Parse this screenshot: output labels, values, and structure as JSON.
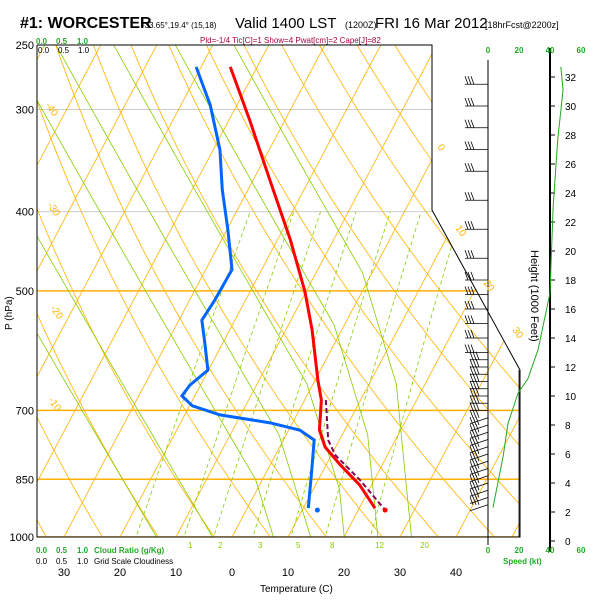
{
  "header": {
    "station": "#1: WORCESTER",
    "coords": "-33.65°,19.4° (15,18)",
    "valid": "Valid 1400 LST",
    "utc": "(1200Z)",
    "date": "FRI 16 Mar 2012",
    "forecast": "[18hrFcst@2200z]",
    "indices": "Pld=-1/4 Tic[C]=1 Show=4 Pwat[cm]=2 Cape[J]=82"
  },
  "cloud": {
    "ratio_ticks": [
      "0.0",
      "0.5",
      "1.0"
    ],
    "ratio_label": "Cloud Ratio (g/Kg)",
    "grid_ticks": [
      "0.0",
      "0.5",
      "1.0"
    ],
    "grid_label": "Grid Scale Cloudiness"
  },
  "colors": {
    "temp": "#ff0000",
    "dew": "#0066ff",
    "parcel": "#880055",
    "isotherm": "#ffb300",
    "mixing": "#88cc00",
    "wind": "#22aa22"
  },
  "chart_data": {
    "type": "line",
    "title": "Skew-T sounding",
    "xlabel": "Temperature (C)",
    "ylabel": "P (hPa)",
    "y2label": "Height (1000 Feet)",
    "pressure_ticks": [
      250,
      300,
      400,
      500,
      700,
      850,
      1000
    ],
    "temp_ticks": [
      -30,
      -20,
      -10,
      0,
      10,
      20,
      30,
      40
    ],
    "temp_tick_labels": [
      "30",
      "20",
      "10",
      "0",
      "10",
      "20",
      "30",
      "40"
    ],
    "height_ticks": [
      0,
      2,
      4,
      6,
      8,
      10,
      12,
      14,
      16,
      18,
      20,
      22,
      24,
      26,
      28,
      30,
      32
    ],
    "isotherm_labels": [
      "-40",
      "-30",
      "-20",
      "-10",
      "0",
      "10",
      "20",
      "30"
    ],
    "mixing_ratio_labels": [
      "1",
      "2",
      "3",
      "5",
      "8",
      "12",
      "20"
    ],
    "speed_ticks": [
      "0",
      "20",
      "40",
      "60"
    ],
    "speed_label": "Speed (kt)",
    "series": [
      {
        "name": "Temperature",
        "points": [
          [
            266,
            -44.8
          ],
          [
            309,
            -36.3
          ],
          [
            366,
            -27
          ],
          [
            433,
            -17.7
          ],
          [
            501,
            -10.2
          ],
          [
            558,
            -5.3
          ],
          [
            643,
            0.5
          ],
          [
            680,
            3
          ],
          [
            740,
            5.5
          ],
          [
            776,
            8.1
          ],
          [
            816,
            12.5
          ],
          [
            864,
            17.9
          ],
          [
            922,
            22.8
          ]
        ]
      },
      {
        "name": "Dewpoint",
        "points": [
          [
            266,
            -50.9
          ],
          [
            296,
            -44.8
          ],
          [
            336,
            -38.8
          ],
          [
            376,
            -34.6
          ],
          [
            421,
            -29.8
          ],
          [
            471,
            -25.3
          ],
          [
            513,
            -25.5
          ],
          [
            543,
            -25.9
          ],
          [
            582,
            -23
          ],
          [
            625,
            -20.1
          ],
          [
            652,
            -21.9
          ],
          [
            672,
            -22.3
          ],
          [
            691,
            -19.5
          ],
          [
            709,
            -13.7
          ],
          [
            725,
            -4
          ],
          [
            740,
            2
          ],
          [
            761,
            5.5
          ],
          [
            828,
            7.9
          ],
          [
            922,
            10.9
          ]
        ]
      },
      {
        "name": "Parcel",
        "points": [
          [
            680,
            3.8
          ],
          [
            761,
            8
          ],
          [
            794,
            10.7
          ],
          [
            852,
            17.5
          ],
          [
            927,
            24.8
          ]
        ]
      }
    ],
    "surface": {
      "pressure": 927,
      "temp": 24.8,
      "dewpoint": 12.7
    },
    "wind_speed_profile": [
      [
        2.3,
        3.2
      ],
      [
        5.8,
        9.7
      ],
      [
        8.1,
        12.9
      ],
      [
        10.2,
        19.4
      ],
      [
        11.2,
        25.8
      ],
      [
        13.2,
        32.3
      ],
      [
        17.1,
        40
      ],
      [
        23,
        42
      ],
      [
        27.7,
        45
      ],
      [
        31.1,
        48.4
      ],
      [
        32.7,
        47
      ]
    ],
    "wind_barb_heights": [
      2.5,
      3,
      3.5,
      4,
      4.5,
      5,
      5.5,
      6,
      6.5,
      7,
      7.5,
      8,
      8.5,
      9,
      9.5,
      10,
      10.5,
      11,
      11.5,
      12,
      12.5,
      13,
      14,
      15,
      16,
      17,
      18,
      19.5,
      21.5,
      23.5,
      25.5,
      27,
      28.5,
      30,
      31.5
    ]
  }
}
